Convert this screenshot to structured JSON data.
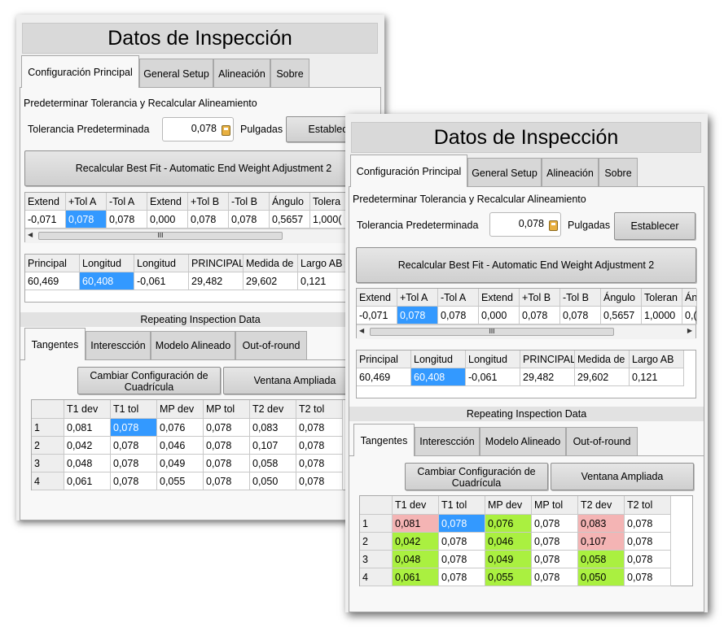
{
  "window": {
    "title": "Datos de Inspección"
  },
  "main_tabs": [
    "Configuración Principal",
    "General Setup",
    "Alineación",
    "Sobre"
  ],
  "tolerance_section": {
    "heading": "Predeterminar Tolerancia y Recalcular Alineamiento",
    "label": "Tolerancia Predeterminada",
    "value": "0,078",
    "unit": "Pulgadas",
    "set_button": "Establecer",
    "set_button_partial": "Establece",
    "recalc_button": "Recalcular Best Fit - Automatic End Weight Adjustment 2"
  },
  "tol_table": {
    "headers_p1": [
      "Extend",
      "+Tol A",
      "-Tol A",
      "Extend",
      "+Tol B",
      "-Tol B",
      "Ángulo",
      "Tolera"
    ],
    "headers_p2": [
      "Extend",
      "+Tol A",
      "-Tol A",
      "Extend",
      "+Tol B",
      "-Tol B",
      "Ángulo",
      "Toleran",
      "Án"
    ],
    "values_p1": [
      "-0,071",
      "0,078",
      "0,078",
      "0,000",
      "0,078",
      "0,078",
      "0,5657",
      "1,000("
    ],
    "values_p2": [
      "-0,071",
      "0,078",
      "0,078",
      "0,000",
      "0,078",
      "0,078",
      "0,5657",
      "1,0000",
      "0,("
    ],
    "scroll_thumb": "III"
  },
  "summary_table": {
    "headers": [
      "Principal",
      "Longitud",
      "Longitud",
      "PRINCIPAL",
      "Medida de",
      "Largo AB"
    ],
    "values": [
      "60,469",
      "60,408",
      "-0,061",
      "29,482",
      "29,602",
      "0,121"
    ]
  },
  "repeating": {
    "heading": "Repeating Inspection Data",
    "tabs": [
      "Tangentes",
      "Interescción",
      "Modelo Alineado",
      "Out-of-round"
    ],
    "grid_button": "Cambiar Configuración de Cuadrícula",
    "window_button": "Ventana Ampliada",
    "table_headers": [
      "",
      "T1 dev",
      "T1 tol",
      "MP dev",
      "MP tol",
      "T2 dev",
      "T2 tol"
    ],
    "rows": [
      [
        "1",
        "0,081",
        "0,078",
        "0,076",
        "0,078",
        "0,083",
        "0,078"
      ],
      [
        "2",
        "0,042",
        "0,078",
        "0,046",
        "0,078",
        "0,107",
        "0,078"
      ],
      [
        "3",
        "0,048",
        "0,078",
        "0,049",
        "0,078",
        "0,058",
        "0,078"
      ],
      [
        "4",
        "0,061",
        "0,078",
        "0,055",
        "0,078",
        "0,050",
        "0,078"
      ]
    ],
    "status_p2": [
      [
        "",
        "red",
        "sel",
        "green",
        "",
        "red",
        ""
      ],
      [
        "",
        "green",
        "",
        "green",
        "",
        "red",
        ""
      ],
      [
        "",
        "green",
        "",
        "green",
        "",
        "green",
        ""
      ],
      [
        "",
        "green",
        "",
        "green",
        "",
        "green",
        ""
      ]
    ]
  },
  "colors": {
    "selected": "#3399ff",
    "out_of_tolerance": "#f4b4b4",
    "in_tolerance": "#aaf040"
  }
}
